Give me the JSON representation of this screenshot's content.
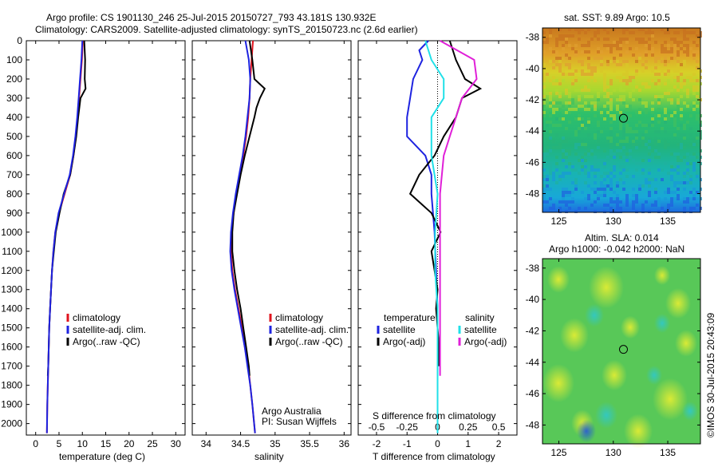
{
  "header": {
    "line1": "Argo profile: CS 1901130_246 25-Jul-2015 20150727_793 43.181S 130.932E",
    "line2": "Climatology: CARS2009. Satellite-adjusted climatology: synTS_20150723.nc (2.6d earlier)"
  },
  "footer": {
    "credit": "©IMOS 30-Jul-2015 20:43:09",
    "org": "Argo Australia",
    "pi": "PI: Susan Wijffels"
  },
  "colors": {
    "climatology": "#e0141e",
    "satellite": "#1e23e0",
    "argo": "#000000",
    "s_sat": "#20e0e8",
    "s_argo": "#e020d8"
  },
  "chart_data": [
    {
      "type": "line",
      "title": "",
      "xlabel": "temperature (deg C)",
      "ylabel": "",
      "xlim": [
        -2,
        32
      ],
      "ylim": [
        2060,
        0
      ],
      "xticks": [
        "0",
        "5",
        "10",
        "15",
        "20",
        "25",
        "30"
      ],
      "yticks": [
        "0",
        "100",
        "200",
        "300",
        "400",
        "500",
        "600",
        "700",
        "800",
        "900",
        "1000",
        "1100",
        "1200",
        "1300",
        "1400",
        "1500",
        "1600",
        "1700",
        "1800",
        "1900",
        "2000"
      ],
      "legend": [
        "climatology",
        "satellite-adj. clim.",
        "Argo(..raw -QC)"
      ],
      "series": [
        {
          "name": "climatology",
          "depth": [
            0,
            100,
            200,
            300,
            400,
            500,
            600,
            700,
            800,
            900,
            1000,
            1100,
            1200,
            1300,
            1400,
            1500,
            1600,
            1700,
            1800,
            1900,
            2050
          ],
          "values": [
            10.1,
            9.9,
            9.6,
            9.3,
            9.0,
            8.6,
            8.1,
            7.4,
            6.2,
            5.0,
            4.2,
            3.8,
            3.5,
            3.3,
            3.1,
            2.9,
            2.8,
            2.7,
            2.6,
            2.5,
            2.4
          ]
        },
        {
          "name": "satellite-adj. clim.",
          "depth": [
            0,
            100,
            200,
            300,
            400,
            500,
            600,
            700,
            800,
            900,
            1000,
            1100,
            1200,
            1300,
            1400,
            1500,
            1600,
            1700,
            1800,
            1900,
            2050
          ],
          "values": [
            10.0,
            9.8,
            9.5,
            9.2,
            8.9,
            8.5,
            8.0,
            7.3,
            6.1,
            4.9,
            4.2,
            3.8,
            3.5,
            3.3,
            3.1,
            2.9,
            2.8,
            2.7,
            2.6,
            2.5,
            2.4
          ]
        },
        {
          "name": "Argo(..raw -QC)",
          "depth": [
            0,
            100,
            200,
            250,
            300,
            400,
            500,
            600,
            700,
            800,
            900,
            1000,
            1100,
            1200,
            1300,
            1400,
            1500,
            1600,
            1700,
            1750
          ],
          "values": [
            10.4,
            10.6,
            10.5,
            10.7,
            9.6,
            9.1,
            8.7,
            8.1,
            7.4,
            6.0,
            5.1,
            4.3,
            3.9,
            3.5,
            3.3,
            3.1,
            2.9,
            2.8,
            2.7,
            2.6
          ]
        }
      ]
    },
    {
      "type": "line",
      "title": "",
      "xlabel": "salinity",
      "ylabel": "",
      "xlim": [
        33.8,
        36.1
      ],
      "ylim": [
        2060,
        0
      ],
      "xticks": [
        "34",
        "34.5",
        "35",
        "35.5",
        "36"
      ],
      "legend": [
        "climatology",
        "satellite-adj. clim.",
        "Argo(..raw -QC)"
      ],
      "series": [
        {
          "name": "climatology",
          "depth": [
            0,
            100,
            200,
            300,
            400,
            500,
            600,
            700,
            800,
            900,
            1000,
            1100,
            1200,
            1300,
            1400,
            1500,
            1600,
            1700,
            1800,
            1900,
            2050
          ],
          "values": [
            34.68,
            34.66,
            34.64,
            34.63,
            34.61,
            34.58,
            34.54,
            34.49,
            34.44,
            34.4,
            34.37,
            34.36,
            34.38,
            34.42,
            34.47,
            34.52,
            34.56,
            34.61,
            34.64,
            34.67,
            34.71
          ]
        },
        {
          "name": "satellite-adj. clim.",
          "depth": [
            0,
            100,
            200,
            300,
            400,
            500,
            600,
            700,
            800,
            900,
            1000,
            1100,
            1200,
            1300,
            1400,
            1500,
            1600,
            1700,
            1800,
            1900,
            2050
          ],
          "values": [
            34.57,
            34.62,
            34.64,
            34.63,
            34.6,
            34.57,
            34.53,
            34.48,
            34.43,
            34.39,
            34.36,
            34.35,
            34.37,
            34.41,
            34.46,
            34.51,
            34.56,
            34.6,
            34.64,
            34.67,
            34.71
          ]
        },
        {
          "name": "Argo(..raw -QC)",
          "depth": [
            0,
            100,
            200,
            250,
            300,
            350,
            400,
            500,
            600,
            700,
            800,
            900,
            1000,
            1100,
            1200,
            1300,
            1400,
            1500,
            1600,
            1700,
            1750
          ],
          "values": [
            34.63,
            34.67,
            34.7,
            34.85,
            34.78,
            34.73,
            34.7,
            34.63,
            34.56,
            34.5,
            34.45,
            34.4,
            34.38,
            34.38,
            34.41,
            34.45,
            34.5,
            34.54,
            34.58,
            34.62,
            34.63
          ]
        }
      ]
    },
    {
      "type": "line",
      "title": "",
      "xlabel": "T difference from climatology",
      "xlabel2": "S difference from climatology",
      "ylabel": "",
      "xlim": [
        -2.6,
        2.6
      ],
      "ylim": [
        2060,
        0
      ],
      "xticks": [
        "-2",
        "-1",
        "0",
        "1",
        "2"
      ],
      "xticks2": [
        "-0.5",
        "-0.25",
        "0",
        "0.25",
        "0.5"
      ],
      "legend_temperature_header": "temperature",
      "legend_salinity_header": "salinity",
      "legend": [
        "satellite",
        "Argo(-adj)",
        "satellite",
        "Argo(-adj)"
      ],
      "series": [
        {
          "name": "satellite",
          "group": "temperature",
          "depth": [
            0,
            50,
            100,
            200,
            300,
            400,
            500,
            600,
            700,
            800,
            1000,
            1200,
            1400,
            1600,
            1800,
            2050
          ],
          "values": [
            -0.3,
            -0.6,
            -0.5,
            -0.8,
            -0.9,
            -1.0,
            -1.0,
            -0.4,
            -0.2,
            -0.2,
            -0.1,
            -0.05,
            0,
            0,
            0,
            0
          ]
        },
        {
          "name": "Argo(-adj)",
          "group": "temperature",
          "depth": [
            0,
            100,
            200,
            250,
            300,
            400,
            500,
            600,
            700,
            800,
            900,
            1000,
            1100,
            1200,
            1300,
            1400,
            1500,
            1600,
            1700
          ],
          "values": [
            0.4,
            0.6,
            0.9,
            1.4,
            0.8,
            0.6,
            0.2,
            -0.1,
            -0.6,
            -0.9,
            -0.2,
            0.1,
            -0.2,
            -0.1,
            0,
            -0.05,
            0,
            0.05,
            0.05
          ]
        },
        {
          "name": "satellite",
          "group": "salinity",
          "depth": [
            0,
            100,
            200,
            300,
            400,
            500,
            600,
            800,
            1000,
            1200,
            1400,
            1600,
            1800,
            2050
          ],
          "values": [
            -0.1,
            -0.05,
            0.05,
            0.05,
            -0.05,
            -0.05,
            -0.05,
            0,
            -0.02,
            -0.02,
            0,
            0,
            0,
            0
          ]
        },
        {
          "name": "Argo(-adj)",
          "group": "salinity",
          "depth": [
            0,
            100,
            200,
            250,
            300,
            400,
            500,
            600,
            800,
            1000,
            1200,
            1400,
            1600,
            1750
          ],
          "values": [
            0.02,
            0.3,
            0.32,
            0.26,
            0.2,
            0.15,
            0.1,
            0.05,
            0.02,
            0.02,
            0.02,
            0.02,
            0.02,
            0.02
          ]
        }
      ]
    },
    {
      "type": "heatmap",
      "title": "sat. SST: 9.89  Argo: 10.5",
      "xlim": [
        123.5,
        138
      ],
      "ylim": [
        -49.2,
        -37.4
      ],
      "xticks": [
        "125",
        "130",
        "135"
      ],
      "yticks": [
        "-38",
        "-40",
        "-42",
        "-44",
        "-46",
        "-48"
      ],
      "marker": {
        "lon": 130.932,
        "lat": -43.181
      }
    },
    {
      "type": "heatmap",
      "title": "Altim. SLA: 0.014",
      "subtitle": "Argo h1000: -0.042 h2000: NaN",
      "xlim": [
        123.5,
        138
      ],
      "ylim": [
        -49.2,
        -37.4
      ],
      "xticks": [
        "125",
        "130",
        "135"
      ],
      "yticks": [
        "-38",
        "-40",
        "-42",
        "-44",
        "-46",
        "-48"
      ],
      "marker": {
        "lon": 130.932,
        "lat": -43.181
      }
    }
  ]
}
